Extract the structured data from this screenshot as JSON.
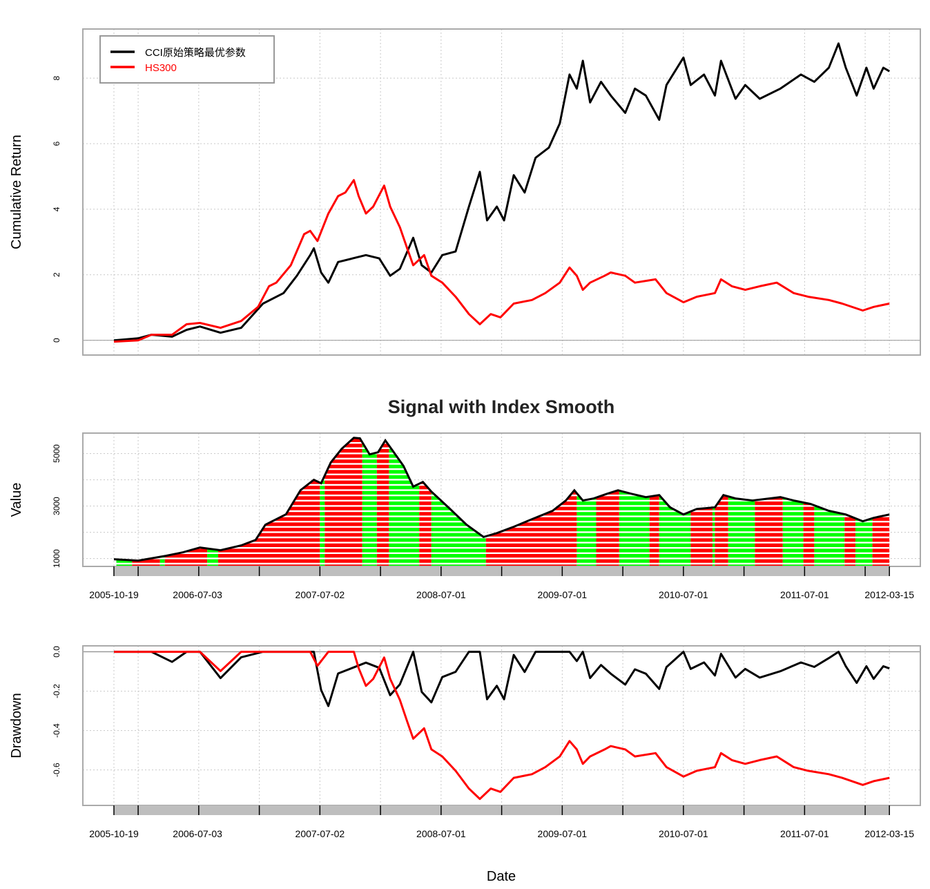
{
  "chart_data": [
    {
      "type": "line",
      "ylabel": "Cumulative Return",
      "ylim": [
        -0.45,
        9.5
      ],
      "yticks": [
        0,
        2,
        4,
        6,
        8
      ],
      "grid": true,
      "legend": {
        "placement": "top-left",
        "entries": [
          {
            "label": "CCI原始策略最优参数",
            "color": "#000000"
          },
          {
            "label": "HS300",
            "color": "#ff0000"
          }
        ]
      },
      "series": [
        {
          "name": "CCI原始策略最优参数",
          "color": "#000000",
          "points": [
            [
              2005.8,
              0
            ],
            [
              2006.0,
              0.06
            ],
            [
              2006.11,
              0.17
            ],
            [
              2006.28,
              0.11
            ],
            [
              2006.4,
              0.32
            ],
            [
              2006.51,
              0.42
            ],
            [
              2006.68,
              0.23
            ],
            [
              2006.85,
              0.38
            ],
            [
              2007.03,
              1.12
            ],
            [
              2007.2,
              1.44
            ],
            [
              2007.31,
              1.97
            ],
            [
              2007.42,
              2.6
            ],
            [
              2007.45,
              2.81
            ],
            [
              2007.51,
              2.07
            ],
            [
              2007.57,
              1.76
            ],
            [
              2007.65,
              2.39
            ],
            [
              2007.77,
              2.5
            ],
            [
              2007.88,
              2.6
            ],
            [
              2007.99,
              2.5
            ],
            [
              2008.08,
              1.97
            ],
            [
              2008.16,
              2.18
            ],
            [
              2008.27,
              3.13
            ],
            [
              2008.34,
              2.29
            ],
            [
              2008.42,
              2.07
            ],
            [
              2008.51,
              2.6
            ],
            [
              2008.62,
              2.71
            ],
            [
              2008.73,
              4.08
            ],
            [
              2008.82,
              5.14
            ],
            [
              2008.88,
              3.66
            ],
            [
              2008.96,
              4.08
            ],
            [
              2009.02,
              3.66
            ],
            [
              2009.1,
              5.04
            ],
            [
              2009.19,
              4.51
            ],
            [
              2009.28,
              5.57
            ],
            [
              2009.39,
              5.88
            ],
            [
              2009.48,
              6.62
            ],
            [
              2009.56,
              8.11
            ],
            [
              2009.62,
              7.68
            ],
            [
              2009.67,
              8.53
            ],
            [
              2009.73,
              7.26
            ],
            [
              2009.82,
              7.89
            ],
            [
              2009.9,
              7.47
            ],
            [
              2010.02,
              6.94
            ],
            [
              2010.1,
              7.68
            ],
            [
              2010.19,
              7.47
            ],
            [
              2010.3,
              6.73
            ],
            [
              2010.36,
              7.79
            ],
            [
              2010.5,
              8.63
            ],
            [
              2010.56,
              7.79
            ],
            [
              2010.67,
              8.11
            ],
            [
              2010.76,
              7.47
            ],
            [
              2010.81,
              8.53
            ],
            [
              2010.93,
              7.37
            ],
            [
              2011.01,
              7.79
            ],
            [
              2011.13,
              7.37
            ],
            [
              2011.3,
              7.68
            ],
            [
              2011.47,
              8.11
            ],
            [
              2011.58,
              7.89
            ],
            [
              2011.7,
              8.32
            ],
            [
              2011.78,
              9.06
            ],
            [
              2011.84,
              8.32
            ],
            [
              2011.93,
              7.47
            ],
            [
              2012.01,
              8.32
            ],
            [
              2012.07,
              7.68
            ],
            [
              2012.15,
              8.32
            ],
            [
              2012.2,
              8.21
            ]
          ]
        },
        {
          "name": "HS300",
          "color": "#ff0000",
          "points": [
            [
              2005.8,
              -0.04
            ],
            [
              2006.0,
              0
            ],
            [
              2006.11,
              0.17
            ],
            [
              2006.28,
              0.17
            ],
            [
              2006.4,
              0.49
            ],
            [
              2006.51,
              0.53
            ],
            [
              2006.68,
              0.38
            ],
            [
              2006.85,
              0.59
            ],
            [
              2006.99,
              1.02
            ],
            [
              2007.08,
              1.65
            ],
            [
              2007.14,
              1.76
            ],
            [
              2007.26,
              2.29
            ],
            [
              2007.37,
              3.24
            ],
            [
              2007.42,
              3.34
            ],
            [
              2007.48,
              3.03
            ],
            [
              2007.57,
              3.87
            ],
            [
              2007.65,
              4.4
            ],
            [
              2007.71,
              4.51
            ],
            [
              2007.78,
              4.89
            ],
            [
              2007.82,
              4.4
            ],
            [
              2007.88,
              3.87
            ],
            [
              2007.94,
              4.08
            ],
            [
              2008.03,
              4.72
            ],
            [
              2008.08,
              4.08
            ],
            [
              2008.16,
              3.45
            ],
            [
              2008.22,
              2.81
            ],
            [
              2008.27,
              2.29
            ],
            [
              2008.36,
              2.6
            ],
            [
              2008.42,
              1.97
            ],
            [
              2008.51,
              1.76
            ],
            [
              2008.62,
              1.33
            ],
            [
              2008.73,
              0.8
            ],
            [
              2008.82,
              0.49
            ],
            [
              2008.91,
              0.8
            ],
            [
              2008.99,
              0.7
            ],
            [
              2009.1,
              1.12
            ],
            [
              2009.25,
              1.23
            ],
            [
              2009.36,
              1.44
            ],
            [
              2009.48,
              1.76
            ],
            [
              2009.56,
              2.22
            ],
            [
              2009.62,
              1.97
            ],
            [
              2009.67,
              1.54
            ],
            [
              2009.73,
              1.76
            ],
            [
              2009.85,
              1.97
            ],
            [
              2009.9,
              2.07
            ],
            [
              2010.02,
              1.97
            ],
            [
              2010.1,
              1.76
            ],
            [
              2010.27,
              1.86
            ],
            [
              2010.36,
              1.44
            ],
            [
              2010.5,
              1.16
            ],
            [
              2010.61,
              1.33
            ],
            [
              2010.76,
              1.44
            ],
            [
              2010.81,
              1.86
            ],
            [
              2010.9,
              1.65
            ],
            [
              2011.01,
              1.54
            ],
            [
              2011.13,
              1.65
            ],
            [
              2011.27,
              1.76
            ],
            [
              2011.41,
              1.44
            ],
            [
              2011.53,
              1.33
            ],
            [
              2011.7,
              1.23
            ],
            [
              2011.81,
              1.12
            ],
            [
              2011.98,
              0.91
            ],
            [
              2012.07,
              1.02
            ],
            [
              2012.2,
              1.12
            ]
          ]
        }
      ]
    },
    {
      "type": "area",
      "title": "Signal with Index Smooth",
      "ylabel": "Value",
      "ylim": [
        700,
        5780
      ],
      "yticks": [
        1000,
        3000,
        5000
      ],
      "ygrid": [
        1000,
        2000,
        3000,
        4000,
        5000
      ],
      "grid": true,
      "index": [
        [
          2005.8,
          975
        ],
        [
          2006.0,
          920
        ],
        [
          2006.23,
          1105
        ],
        [
          2006.37,
          1237
        ],
        [
          2006.51,
          1421
        ],
        [
          2006.68,
          1316
        ],
        [
          2006.85,
          1500
        ],
        [
          2006.97,
          1710
        ],
        [
          2007.05,
          2290
        ],
        [
          2007.22,
          2684
        ],
        [
          2007.34,
          3605
        ],
        [
          2007.45,
          4000
        ],
        [
          2007.51,
          3870
        ],
        [
          2007.59,
          4660
        ],
        [
          2007.68,
          5180
        ],
        [
          2007.78,
          5600
        ],
        [
          2007.83,
          5580
        ],
        [
          2007.91,
          4970
        ],
        [
          2007.98,
          5050
        ],
        [
          2008.04,
          5500
        ],
        [
          2008.11,
          5050
        ],
        [
          2008.19,
          4530
        ],
        [
          2008.27,
          3740
        ],
        [
          2008.35,
          3920
        ],
        [
          2008.42,
          3550
        ],
        [
          2008.56,
          2950
        ],
        [
          2008.71,
          2290
        ],
        [
          2008.85,
          1820
        ],
        [
          2008.96,
          1970
        ],
        [
          2009.1,
          2210
        ],
        [
          2009.25,
          2500
        ],
        [
          2009.42,
          2820
        ],
        [
          2009.53,
          3210
        ],
        [
          2009.6,
          3600
        ],
        [
          2009.67,
          3210
        ],
        [
          2009.76,
          3290
        ],
        [
          2009.87,
          3470
        ],
        [
          2009.96,
          3600
        ],
        [
          2010.07,
          3470
        ],
        [
          2010.19,
          3340
        ],
        [
          2010.3,
          3420
        ],
        [
          2010.39,
          2950
        ],
        [
          2010.5,
          2680
        ],
        [
          2010.61,
          2890
        ],
        [
          2010.76,
          2950
        ],
        [
          2010.83,
          3420
        ],
        [
          2010.93,
          3290
        ],
        [
          2011.07,
          3210
        ],
        [
          2011.21,
          3290
        ],
        [
          2011.3,
          3340
        ],
        [
          2011.41,
          3210
        ],
        [
          2011.55,
          3080
        ],
        [
          2011.7,
          2820
        ],
        [
          2011.84,
          2680
        ],
        [
          2011.98,
          2420
        ],
        [
          2012.07,
          2550
        ],
        [
          2012.2,
          2680
        ]
      ],
      "signals": [
        [
          2005.82,
          2005.95,
          "green"
        ],
        [
          2005.95,
          2006.18,
          "red"
        ],
        [
          2006.18,
          2006.22,
          "green"
        ],
        [
          2006.22,
          2006.57,
          "red"
        ],
        [
          2006.57,
          2006.66,
          "green"
        ],
        [
          2006.66,
          2007.5,
          "red"
        ],
        [
          2007.5,
          2007.54,
          "green"
        ],
        [
          2007.54,
          2007.85,
          "red"
        ],
        [
          2007.85,
          2007.97,
          "green"
        ],
        [
          2007.97,
          2008.07,
          "red"
        ],
        [
          2008.07,
          2008.32,
          "green"
        ],
        [
          2008.32,
          2008.42,
          "red"
        ],
        [
          2008.42,
          2008.87,
          "green"
        ],
        [
          2008.87,
          2009.62,
          "red"
        ],
        [
          2009.62,
          2009.78,
          "green"
        ],
        [
          2009.78,
          2009.97,
          "red"
        ],
        [
          2009.97,
          2010.22,
          "green"
        ],
        [
          2010.22,
          2010.3,
          "red"
        ],
        [
          2010.3,
          2010.56,
          "green"
        ],
        [
          2010.56,
          2010.74,
          "red"
        ],
        [
          2010.74,
          2010.76,
          "green"
        ],
        [
          2010.76,
          2010.87,
          "red"
        ],
        [
          2010.87,
          2011.09,
          "green"
        ],
        [
          2011.09,
          2011.32,
          "red"
        ],
        [
          2011.32,
          2011.49,
          "green"
        ],
        [
          2011.49,
          2011.58,
          "red"
        ],
        [
          2011.58,
          2011.83,
          "green"
        ],
        [
          2011.83,
          2011.92,
          "red"
        ],
        [
          2011.92,
          2012.06,
          "green"
        ],
        [
          2012.06,
          2012.2,
          "red"
        ]
      ],
      "signal_colors": {
        "red": "#ff0000",
        "green": "#00ff00"
      },
      "xticks": [
        [
          2005.8,
          "2005-10-19"
        ],
        [
          2006.49,
          "2006-07-03"
        ],
        [
          2007.5,
          "2007-07-02"
        ],
        [
          2008.5,
          "2008-07-01"
        ],
        [
          2009.5,
          "2009-07-01"
        ],
        [
          2010.5,
          "2010-07-01"
        ],
        [
          2011.5,
          "2011-07-01"
        ],
        [
          2012.2,
          "2012-03-15"
        ]
      ]
    },
    {
      "type": "line",
      "ylabel": "Drawdown",
      "xlabel": "Date",
      "ylim": [
        -0.78,
        0.03
      ],
      "yticks": [
        0.0,
        -0.2,
        -0.4,
        -0.6
      ],
      "ytick_labels": [
        "0.0",
        "-0.2",
        "-0.4",
        "-0.6"
      ],
      "grid": true,
      "series_derived_from": "drawdown of cumulative return series",
      "xticks": [
        [
          2005.8,
          "2005-10-19"
        ],
        [
          2006.49,
          "2006-07-03"
        ],
        [
          2007.5,
          "2007-07-02"
        ],
        [
          2008.5,
          "2008-07-01"
        ],
        [
          2009.5,
          "2009-07-01"
        ],
        [
          2010.5,
          "2010-07-01"
        ],
        [
          2011.5,
          "2011-07-01"
        ],
        [
          2012.2,
          "2012-03-15"
        ]
      ]
    }
  ],
  "x_range": [
    2005.8,
    2012.2
  ],
  "x_grid": [
    2005.8,
    2006.0,
    2006.5,
    2007.0,
    2007.5,
    2008.0,
    2008.5,
    2009.0,
    2009.5,
    2010.0,
    2010.5,
    2011.0,
    2011.5,
    2012.0,
    2012.2
  ]
}
